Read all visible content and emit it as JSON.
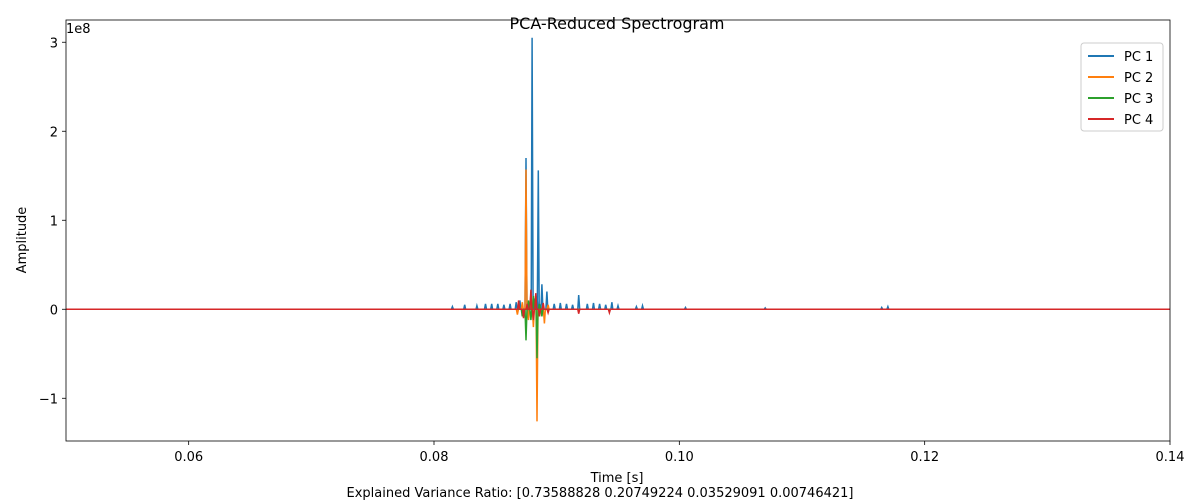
{
  "chart_data": {
    "type": "line",
    "title": "PCA-Reduced Spectrogram",
    "xlabel": "Time [s]",
    "ylabel": "Amplitude",
    "y_offset_label": "1e8",
    "footnote": "Explained Variance Ratio: [0.73588828 0.20749224 0.03529091 0.00746421]",
    "xlim": [
      0.05,
      0.14
    ],
    "ylim": [
      -1.48,
      3.25
    ],
    "x_ticks": [
      0.06,
      0.08,
      0.1,
      0.12,
      0.14
    ],
    "x_tick_labels": [
      "0.06",
      "0.08",
      "0.10",
      "0.12",
      "0.14"
    ],
    "y_ticks": [
      -1,
      0,
      1,
      2,
      3
    ],
    "y_tick_labels": [
      "−1",
      "0",
      "1",
      "2",
      "3"
    ],
    "grid": false,
    "legend_position": "top-right",
    "series": [
      {
        "name": "PC 1",
        "color": "#1f77b4",
        "spikes": [
          [
            0.0815,
            0.03
          ],
          [
            0.0825,
            0.05
          ],
          [
            0.0835,
            0.04
          ],
          [
            0.0842,
            0.06
          ],
          [
            0.0847,
            0.06
          ],
          [
            0.0852,
            0.06
          ],
          [
            0.0857,
            0.05
          ],
          [
            0.0862,
            0.06
          ],
          [
            0.0867,
            0.08
          ],
          [
            0.087,
            0.1
          ],
          [
            0.0875,
            1.7
          ],
          [
            0.0877,
            -0.02
          ],
          [
            0.088,
            3.05
          ],
          [
            0.0882,
            0.12
          ],
          [
            0.0884,
            0.15
          ],
          [
            0.0885,
            1.56
          ],
          [
            0.0888,
            0.28
          ],
          [
            0.0892,
            0.2
          ],
          [
            0.0898,
            0.06
          ],
          [
            0.0903,
            0.07
          ],
          [
            0.0908,
            0.06
          ],
          [
            0.0913,
            0.05
          ],
          [
            0.0918,
            0.16
          ],
          [
            0.0925,
            0.06
          ],
          [
            0.093,
            0.07
          ],
          [
            0.0935,
            0.06
          ],
          [
            0.094,
            0.05
          ],
          [
            0.0945,
            0.08
          ],
          [
            0.095,
            0.04
          ],
          [
            0.0965,
            0.03
          ],
          [
            0.097,
            0.04
          ],
          [
            0.1005,
            0.02
          ],
          [
            0.107,
            0.015
          ],
          [
            0.1165,
            0.02
          ],
          [
            0.117,
            0.03
          ]
        ]
      },
      {
        "name": "PC 2",
        "color": "#ff7f0e",
        "spikes": [
          [
            0.0868,
            -0.06
          ],
          [
            0.0872,
            0.08
          ],
          [
            0.0875,
            1.57
          ],
          [
            0.0877,
            -0.12
          ],
          [
            0.0879,
            0.18
          ],
          [
            0.0881,
            -0.2
          ],
          [
            0.0884,
            -1.26
          ],
          [
            0.0886,
            -0.08
          ],
          [
            0.089,
            -0.16
          ],
          [
            0.0893,
            0.05
          ]
        ]
      },
      {
        "name": "PC 3",
        "color": "#2ca02c",
        "spikes": [
          [
            0.0872,
            -0.08
          ],
          [
            0.0875,
            -0.35
          ],
          [
            0.0877,
            0.1
          ],
          [
            0.0879,
            -0.12
          ],
          [
            0.0881,
            0.15
          ],
          [
            0.0884,
            -0.55
          ],
          [
            0.0886,
            0.06
          ],
          [
            0.0888,
            -0.08
          ]
        ]
      },
      {
        "name": "PC 4",
        "color": "#d62728",
        "spikes": [
          [
            0.0869,
            0.1
          ],
          [
            0.0873,
            -0.1
          ],
          [
            0.0876,
            0.06
          ],
          [
            0.0879,
            0.22
          ],
          [
            0.0881,
            -0.12
          ],
          [
            0.0883,
            0.18
          ],
          [
            0.0886,
            -0.08
          ],
          [
            0.0889,
            0.07
          ],
          [
            0.0893,
            -0.04
          ],
          [
            0.0918,
            -0.05
          ],
          [
            0.0943,
            -0.04
          ]
        ]
      }
    ]
  }
}
